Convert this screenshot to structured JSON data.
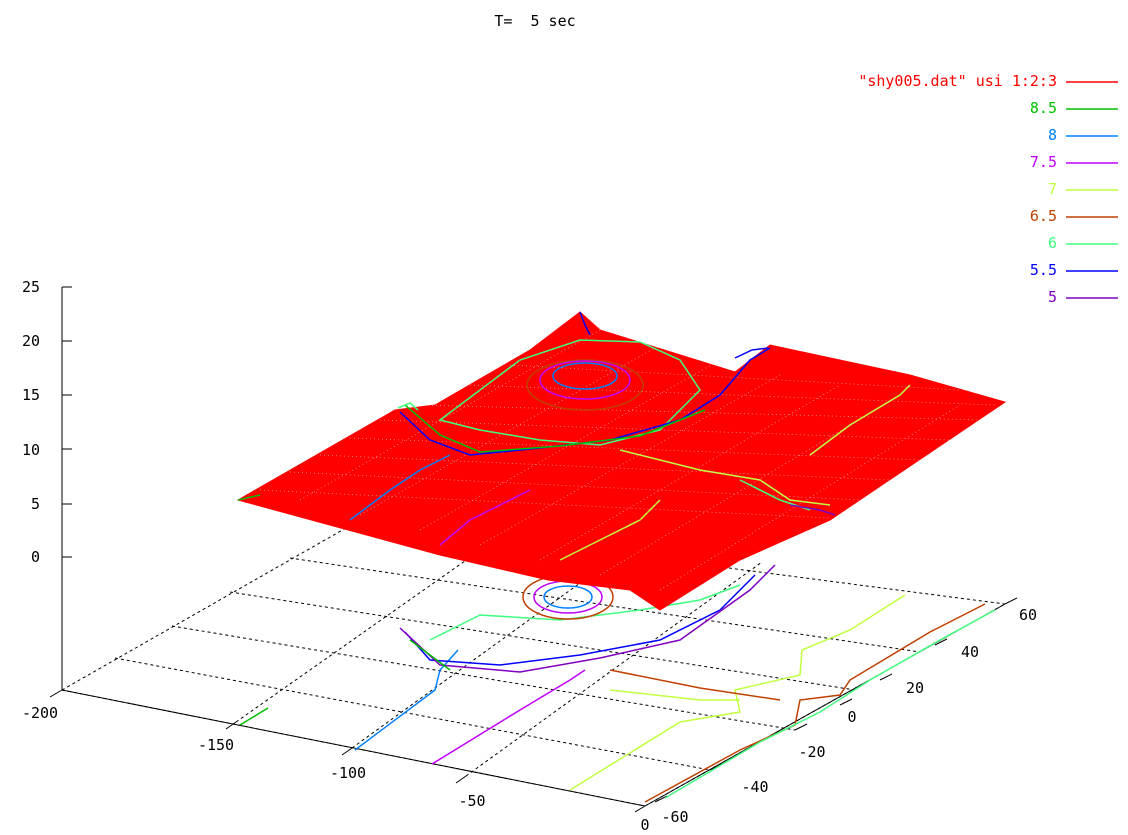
{
  "chart_data": {
    "type": "surface-3d",
    "title": "T=  5 sec",
    "x_ticks": [
      "-200",
      "-150",
      "-100",
      "-50",
      "0"
    ],
    "y_ticks": [
      "-60",
      "-40",
      "-20",
      "0",
      "20",
      "40",
      "60"
    ],
    "z_ticks": [
      "25",
      "20",
      "15",
      "10",
      "5",
      "0"
    ],
    "xlim": [
      -200,
      0
    ],
    "ylim": [
      -60,
      60
    ],
    "zlim": [
      0,
      25
    ],
    "grid": true,
    "legend_position": "top-right",
    "surface_color": "#ff0000",
    "legend": [
      {
        "label": "\"shy005.dat\" usi 1:2:3",
        "color": "#ff0000"
      },
      {
        "label": "8.5",
        "color": "#00c000"
      },
      {
        "label": "8",
        "color": "#0080ff"
      },
      {
        "label": "7.5",
        "color": "#c000ff"
      },
      {
        "label": "7",
        "color": "#c0ff40"
      },
      {
        "label": "6.5",
        "color": "#c04000"
      },
      {
        "label": "6",
        "color": "#40ff80"
      },
      {
        "label": "5.5",
        "color": "#0000ff"
      },
      {
        "label": "5",
        "color": "#8000c0"
      }
    ]
  }
}
